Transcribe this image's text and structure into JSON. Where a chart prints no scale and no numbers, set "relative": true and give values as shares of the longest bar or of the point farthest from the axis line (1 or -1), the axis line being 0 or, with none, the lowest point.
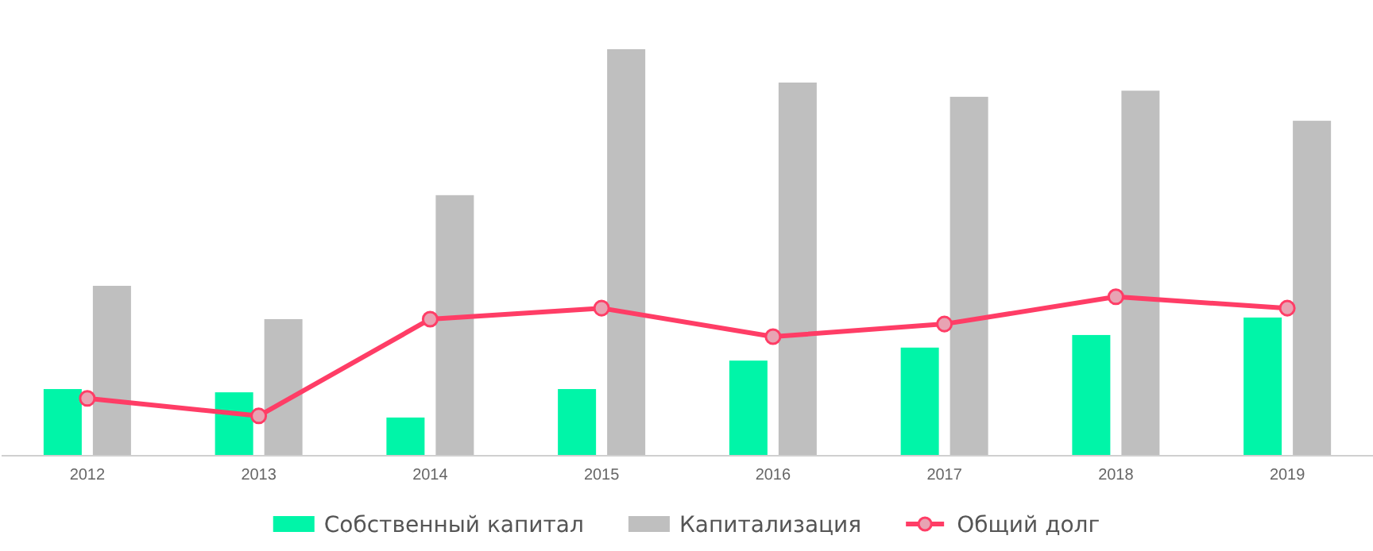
{
  "chart_data": {
    "type": "bar",
    "relative": true,
    "legend": "bottom",
    "grid": false,
    "marker": "circle",
    "categories": [
      "2012",
      "2013",
      "2014",
      "2015",
      "2016",
      "2017",
      "2018",
      "2019"
    ],
    "series": [
      {
        "name": "Собственный капитал",
        "color": "#00f5a8",
        "values": [
          0.164,
          0.156,
          0.094,
          0.164,
          0.234,
          0.266,
          0.297,
          0.34
        ]
      },
      {
        "name": "Капитализация",
        "color": "#bfbfbf",
        "values": [
          0.418,
          0.336,
          0.641,
          1,
          0.918,
          0.883,
          0.898,
          0.824
        ]
      },
      {
        "name": "Общий долг",
        "type": "line",
        "color": "#ff3d66",
        "values": [
          0.141,
          0.098,
          0.336,
          0.363,
          0.293,
          0.324,
          0.391,
          0.363
        ]
      }
    ]
  }
}
